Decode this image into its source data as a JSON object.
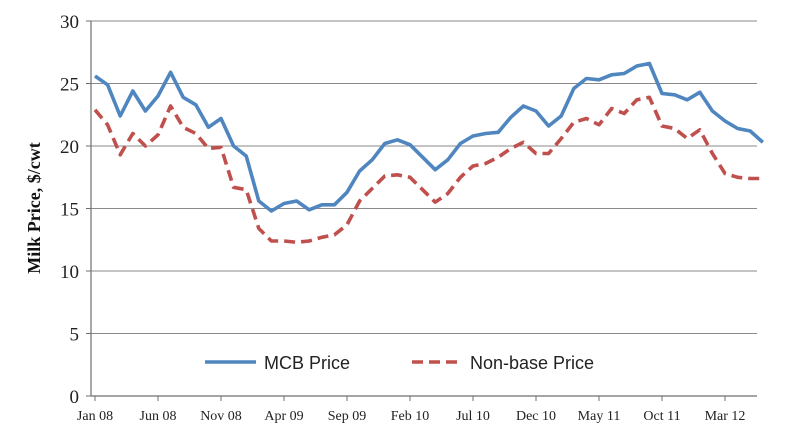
{
  "chart_data": {
    "type": "line",
    "title": "",
    "xlabel": "",
    "ylabel": "Milk Price, $/cwt",
    "ylim": [
      0,
      30
    ],
    "yticks": [
      0,
      5,
      10,
      15,
      20,
      25,
      30
    ],
    "grid": "horizontal",
    "legend_position": "bottom-center",
    "x_tick_labels": [
      {
        "index": 0,
        "label": "Jan 08"
      },
      {
        "index": 5,
        "label": "Jun 08"
      },
      {
        "index": 10,
        "label": "Nov 08"
      },
      {
        "index": 15,
        "label": "Apr 09"
      },
      {
        "index": 20,
        "label": "Sep 09"
      },
      {
        "index": 25,
        "label": "Feb 10"
      },
      {
        "index": 30,
        "label": "Jul 10"
      },
      {
        "index": 35,
        "label": "Dec 10"
      },
      {
        "index": 40,
        "label": "May 11"
      },
      {
        "index": 45,
        "label": "Oct 11"
      },
      {
        "index": 50,
        "label": "Mar 12"
      }
    ],
    "series": [
      {
        "name": "MCB Price",
        "color": "#4f86c0",
        "style": "solid",
        "values": [
          25.6,
          24.9,
          22.4,
          24.4,
          22.8,
          24.0,
          25.9,
          23.9,
          23.3,
          21.5,
          22.2,
          20.0,
          19.2,
          15.6,
          14.8,
          15.4,
          15.6,
          14.9,
          15.3,
          15.3,
          16.3,
          18.0,
          18.9,
          20.2,
          20.5,
          20.1,
          19.1,
          18.1,
          18.9,
          20.2,
          20.8,
          21.0,
          21.1,
          22.3,
          23.2,
          22.8,
          21.6,
          22.4,
          24.6,
          25.4,
          25.3,
          25.7,
          25.8,
          26.4,
          26.6,
          24.2,
          24.1,
          23.7,
          24.3,
          22.8,
          22.0,
          21.4,
          21.2,
          20.3
        ]
      },
      {
        "name": "Non-base Price",
        "color": "#c0504d",
        "style": "dashed",
        "values": [
          22.9,
          21.7,
          19.3,
          21.0,
          20.0,
          20.9,
          23.2,
          21.5,
          21.0,
          19.8,
          19.9,
          16.7,
          16.5,
          13.4,
          12.4,
          12.4,
          12.3,
          12.4,
          12.7,
          12.9,
          13.7,
          15.6,
          16.6,
          17.6,
          17.7,
          17.5,
          16.5,
          15.5,
          16.2,
          17.5,
          18.4,
          18.6,
          19.1,
          19.8,
          20.3,
          19.4,
          19.4,
          20.6,
          21.9,
          22.2,
          21.7,
          23.0,
          22.6,
          23.7,
          23.9,
          21.6,
          21.4,
          20.6,
          21.3,
          19.4,
          17.8,
          17.5,
          17.4,
          17.4
        ]
      }
    ]
  }
}
